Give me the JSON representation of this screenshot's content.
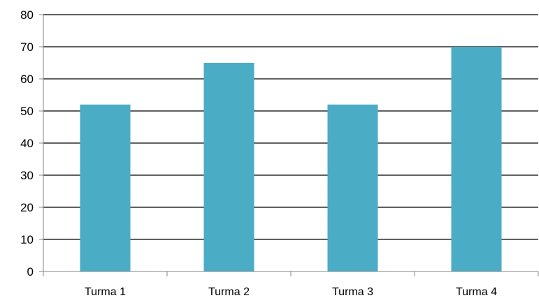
{
  "chart_data": {
    "type": "bar",
    "title": "",
    "xlabel": "",
    "ylabel": "",
    "categories": [
      "Turma 1",
      "Turma 2",
      "Turma 3",
      "Turma 4"
    ],
    "values": [
      52,
      65,
      52,
      70
    ],
    "ylim": [
      0,
      80
    ],
    "yticks": [
      "0",
      "10",
      "20",
      "30",
      "40",
      "50",
      "60",
      "70",
      "80"
    ],
    "grid": true,
    "legend": "none",
    "colors": {
      "bar": "#4bacc6",
      "gridline": "#000000",
      "axis": "#868686"
    }
  }
}
